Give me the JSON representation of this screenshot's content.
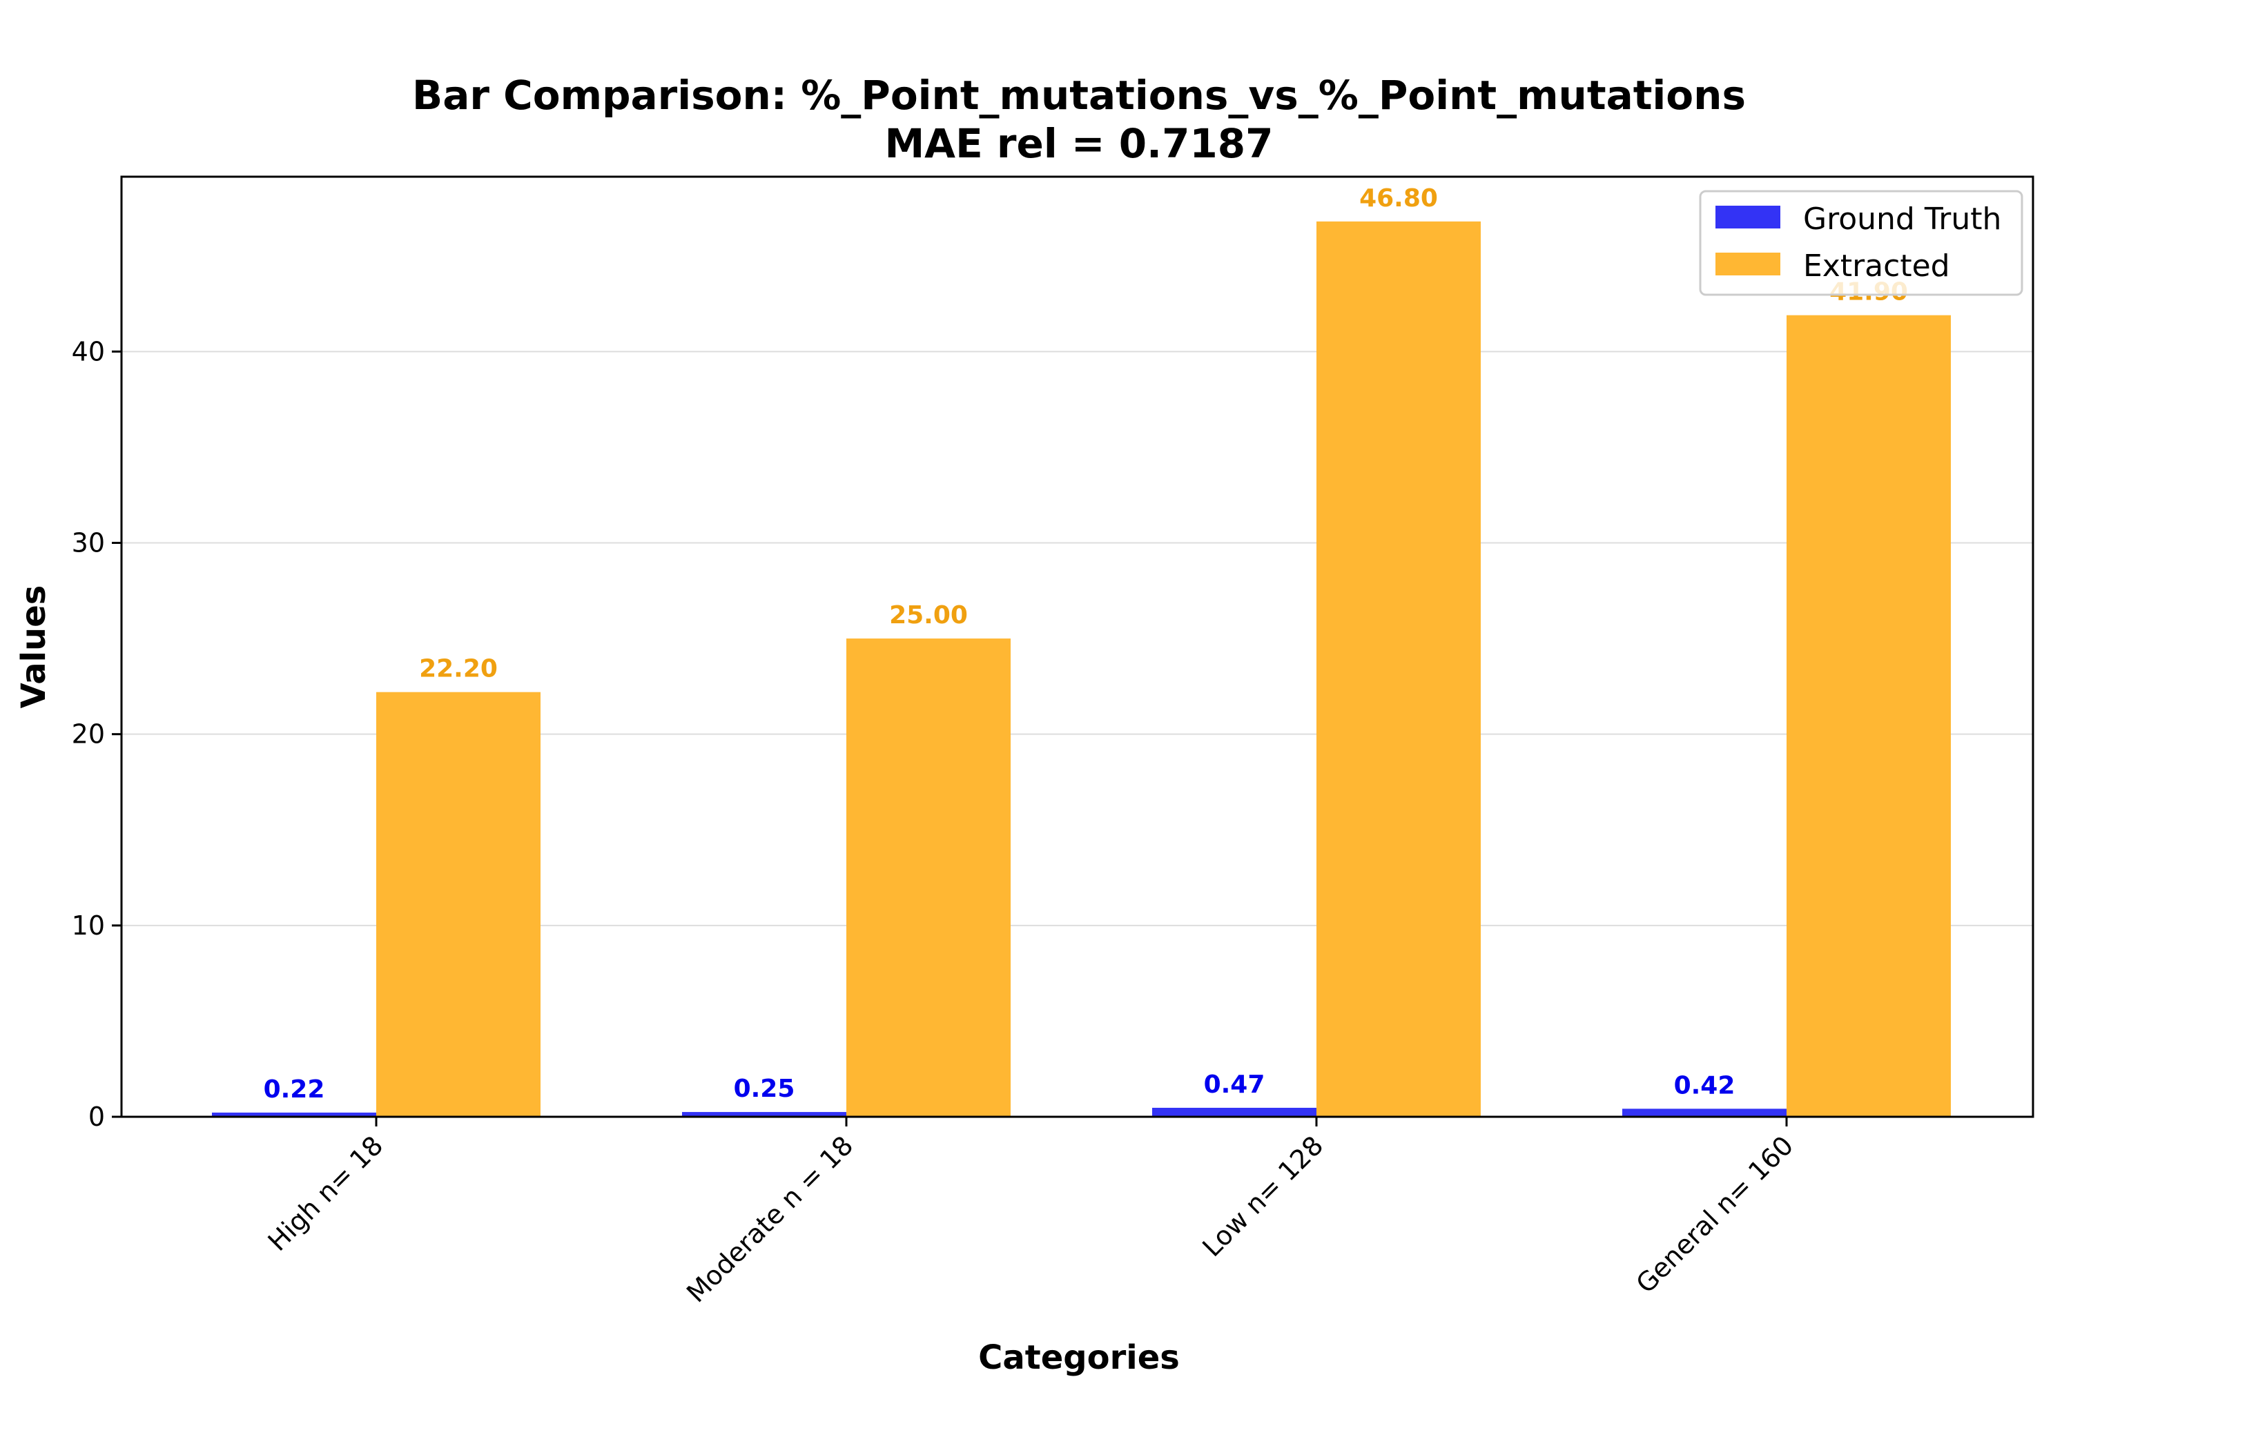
{
  "chart_data": {
    "type": "bar",
    "title": "Bar Comparison: %_Point_mutations_vs_%_Point_mutations",
    "subtitle": "MAE rel = 0.7187",
    "xlabel": "Categories",
    "ylabel": "Values",
    "categories": [
      "High n= 18",
      "Moderate n = 18",
      "Low n= 128",
      "General n= 160"
    ],
    "series": [
      {
        "name": "Ground Truth",
        "color": "#3333f5",
        "label_color": "#0000ee",
        "values": [
          0.22,
          0.25,
          0.47,
          0.42
        ],
        "labels": [
          "0.22",
          "0.25",
          "0.47",
          "0.42"
        ]
      },
      {
        "name": "Extracted",
        "color": "#ffb733",
        "label_color": "#f0a010",
        "values": [
          22.2,
          25.0,
          46.8,
          41.9
        ],
        "labels": [
          "22.20",
          "25.00",
          "46.80",
          "41.90"
        ]
      }
    ],
    "yticks": [
      0,
      10,
      20,
      30,
      40
    ],
    "ylim": [
      0,
      49.14
    ],
    "grid": "horizontal",
    "legend_position": "top-right"
  }
}
